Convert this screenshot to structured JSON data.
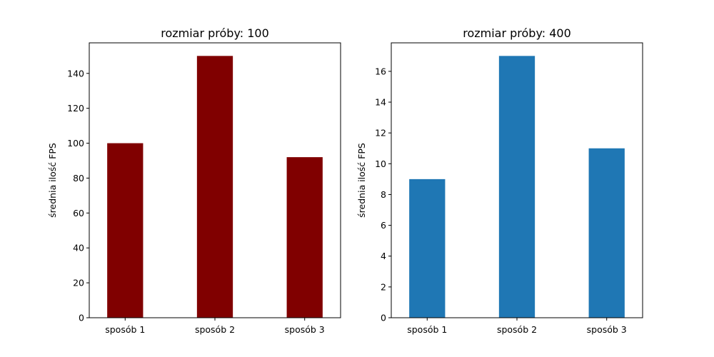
{
  "chart_data": [
    {
      "type": "bar",
      "title": "rozmiar próby: 100",
      "ylabel": "średnia ilość FPS",
      "xlabel": "",
      "categories": [
        "sposób 1",
        "sposób 2",
        "sposób 3"
      ],
      "values": [
        100,
        150,
        92
      ],
      "ylim": [
        0,
        157.5
      ],
      "yticks": [
        0,
        20,
        40,
        60,
        80,
        100,
        120,
        140
      ],
      "color": "#800000",
      "grid": false
    },
    {
      "type": "bar",
      "title": "rozmiar próby: 400",
      "ylabel": "średnia ilość FPS",
      "xlabel": "",
      "categories": [
        "sposób 1",
        "sposób 2",
        "sposób 3"
      ],
      "values": [
        9,
        17,
        11
      ],
      "ylim": [
        0,
        17.85
      ],
      "yticks": [
        0,
        2,
        4,
        6,
        8,
        10,
        12,
        14,
        16
      ],
      "color": "#1f77b4",
      "grid": false
    }
  ]
}
